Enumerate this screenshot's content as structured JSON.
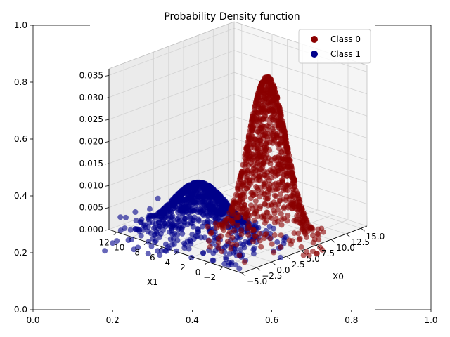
{
  "chart_data": {
    "type": "scatter",
    "title": "Probability Density function",
    "projection": "3d",
    "legend": {
      "placement": "top-right",
      "entries": [
        {
          "label": "Class 0",
          "color": "#8b0000"
        },
        {
          "label": "Class 1",
          "color": "#00008b"
        }
      ]
    },
    "outer_axes": {
      "x_ticks": [
        "0.0",
        "0.2",
        "0.4",
        "0.6",
        "0.8",
        "1.0"
      ],
      "y_ticks": [
        "0.0",
        "0.2",
        "0.4",
        "0.6",
        "0.8",
        "1.0"
      ],
      "xlim": [
        0,
        1
      ],
      "ylim": [
        0,
        1
      ]
    },
    "x0_axis": {
      "label": "X0",
      "ticks": [
        -5.0,
        -2.5,
        0.0,
        2.5,
        5.0,
        7.5,
        10.0,
        12.5,
        15.0
      ],
      "tick_labels": [
        "−5.0",
        "−2.5",
        "0.0",
        "2.5",
        "5.0",
        "7.5",
        "10.0",
        "12.5",
        "15.0"
      ],
      "range": [
        -5,
        16
      ]
    },
    "x1_axis": {
      "label": "X1",
      "ticks": [
        -2,
        0,
        2,
        4,
        6,
        8,
        10,
        12
      ],
      "tick_labels": [
        "−2",
        "0",
        "2",
        "4",
        "6",
        "8",
        "10",
        "12"
      ],
      "range": [
        -4.5,
        13
      ]
    },
    "z_axis": {
      "label": "",
      "ticks": [
        0.0,
        0.005,
        0.01,
        0.015,
        0.02,
        0.025,
        0.03,
        0.035
      ],
      "tick_labels": [
        "0.000",
        "0.005",
        "0.010",
        "0.015",
        "0.020",
        "0.025",
        "0.030",
        "0.035"
      ],
      "range": [
        0,
        0.0365
      ]
    },
    "grid": true,
    "series": [
      {
        "name": "Class 0",
        "color": "#8b0000",
        "distribution": "gaussian",
        "mean": [
          5.0,
          0.0
        ],
        "std": [
          2.0,
          2.0
        ],
        "peak_density": 0.037,
        "n_points": 1000
      },
      {
        "name": "Class 1",
        "color": "#00008b",
        "distribution": "gaussian",
        "mean": [
          0.0,
          5.0
        ],
        "std": [
          3.0,
          3.0
        ],
        "peak_density": 0.0125,
        "n_points": 1000
      }
    ]
  }
}
